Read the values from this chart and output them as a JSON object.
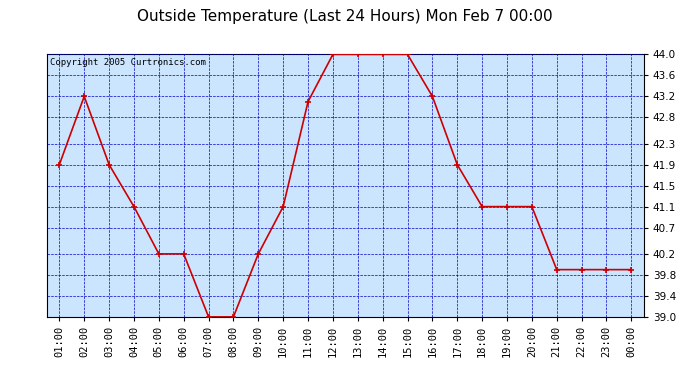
{
  "title": "Outside Temperature (Last 24 Hours) Mon Feb 7 00:00",
  "copyright": "Copyright 2005 Curtronics.com",
  "hours": [
    "01:00",
    "02:00",
    "03:00",
    "04:00",
    "05:00",
    "06:00",
    "07:00",
    "08:00",
    "09:00",
    "10:00",
    "11:00",
    "12:00",
    "13:00",
    "14:00",
    "15:00",
    "16:00",
    "17:00",
    "18:00",
    "19:00",
    "20:00",
    "21:00",
    "22:00",
    "23:00",
    "00:00"
  ],
  "temps": [
    41.9,
    43.2,
    41.9,
    41.1,
    40.2,
    40.2,
    39.0,
    39.0,
    40.2,
    41.1,
    43.1,
    44.0,
    44.0,
    44.0,
    44.0,
    43.2,
    41.9,
    41.1,
    41.1,
    41.1,
    39.9,
    39.9,
    39.9,
    39.9
  ],
  "ylim": [
    39.0,
    44.0
  ],
  "yticks": [
    39.0,
    39.4,
    39.8,
    40.2,
    40.7,
    41.1,
    41.5,
    41.9,
    42.3,
    42.8,
    43.2,
    43.6,
    44.0
  ],
  "line_color": "#cc0000",
  "marker_color": "#cc0000",
  "bg_color": "#cce5ff",
  "outer_bg": "#ffffff",
  "grid_color": "#0000cc",
  "title_color": "#000000",
  "tick_label_color": "#000000",
  "border_color": "#000000",
  "copyright_fontsize": 6.5,
  "title_fontsize": 11,
  "tick_fontsize": 7.5
}
